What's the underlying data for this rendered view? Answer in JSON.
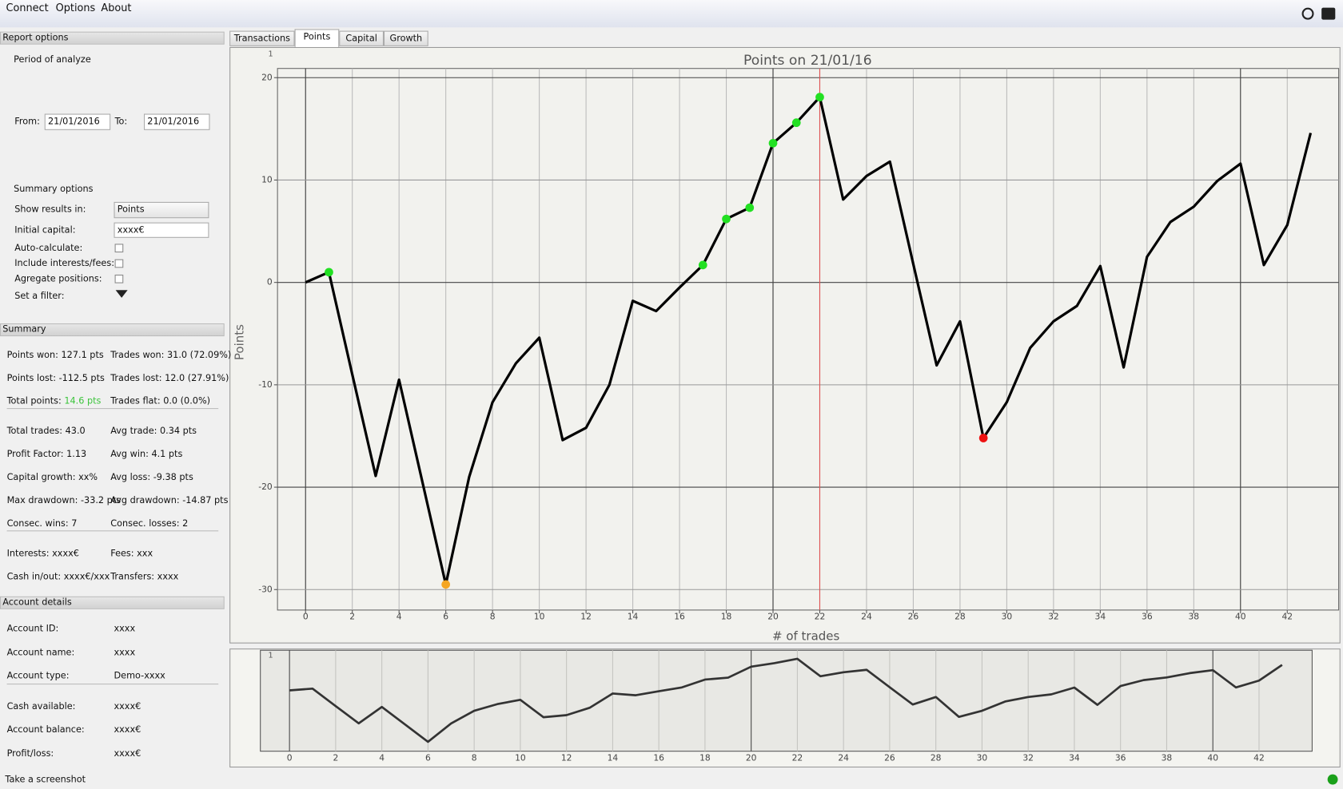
{
  "menu": [
    "Connect",
    "Options",
    "About"
  ],
  "report_options": {
    "title": "Report options",
    "period_label": "Period of analyze",
    "from_label": "From:",
    "from": "21/01/2016",
    "to_label": "To:",
    "to": "21/01/2016",
    "summary_options": "Summary options",
    "show_results_label": "Show results in:",
    "show_results": "Points",
    "initial_capital_label": "Initial capital:",
    "initial_capital": "xxxx€",
    "auto_calculate": "Auto-calculate:",
    "include_interests": "Include interests/fees:",
    "aggregate": "Agregate positions:",
    "filter": "Set a filter:"
  },
  "summary": {
    "title": "Summary",
    "groups": [
      [
        {
          "left": "Points won: 127.1 pts",
          "right": "Trades won: 31.0 (72.09%)"
        },
        {
          "left": "Points lost: -112.5 pts",
          "right": "Trades lost: 12.0 (27.91%)"
        },
        {
          "left": "Total points:",
          "left_value": "14.6 pts",
          "right": "Trades flat: 0.0 (0.0%)"
        }
      ],
      [
        {
          "left": "Total trades: 43.0",
          "right": "Avg trade: 0.34 pts"
        },
        {
          "left": "Profit Factor: 1.13",
          "right": "Avg win: 4.1 pts"
        },
        {
          "left": "Capital growth: xx%",
          "right": "Avg loss: -9.38 pts"
        },
        {
          "left": "Max drawdown: -33.2 pts",
          "right": "Avg drawdown: -14.87 pts"
        },
        {
          "left": "Consec. wins: 7",
          "right": "Consec. losses: 2"
        }
      ],
      [
        {
          "left": "Interests: xxxx€",
          "right": "Fees: xxx"
        },
        {
          "left": "Cash in/out: xxxx€/xxx",
          "right": "Transfers: xxxx"
        }
      ]
    ]
  },
  "account": {
    "title": "Account details",
    "groups": [
      [
        {
          "left": "Account ID:",
          "right": "xxxx"
        },
        {
          "left": "Account name:",
          "right": "xxxx"
        },
        {
          "left": "Account type:",
          "right": "Demo-xxxx"
        }
      ],
      [
        {
          "left": "Cash available:",
          "right": "xxxx€"
        },
        {
          "left": "Account balance:",
          "right": "xxxx€"
        },
        {
          "left": "Profit/loss:",
          "right": "xxxx€"
        }
      ]
    ]
  },
  "tabs": [
    "Transactions",
    "Points",
    "Capital",
    "Growth"
  ],
  "status": "Take a screenshot",
  "chart_data": {
    "type": "line",
    "title": "Points on 21/01/16",
    "x_label": "# of trades",
    "y_label": "Points",
    "corner_label": "1",
    "x": [
      0,
      1,
      2,
      3,
      4,
      5,
      6,
      7,
      8,
      9,
      10,
      11,
      12,
      13,
      14,
      15,
      16,
      17,
      18,
      19,
      20,
      21,
      22,
      23,
      24,
      25,
      26,
      27,
      28,
      29,
      30,
      31,
      32,
      33,
      34,
      35,
      36,
      37,
      38,
      39,
      40,
      41,
      42,
      43
    ],
    "series": [
      {
        "color": "#000000",
        "values": [
          0,
          1.0,
          -9.0,
          -18.9,
          -9.5,
          -19.5,
          -29.5,
          -19.0,
          -11.7,
          -7.9,
          -5.4,
          -15.4,
          -14.2,
          -10.0,
          -1.8,
          -2.8,
          -0.5,
          1.7,
          6.2,
          7.3,
          13.6,
          15.6,
          18.1,
          8.1,
          10.4,
          11.8,
          1.8,
          -8.1,
          -3.8,
          -15.2,
          -11.7,
          -6.4,
          -3.8,
          -2.3,
          1.6,
          -8.3,
          2.5,
          5.9,
          7.4,
          9.9,
          11.6,
          1.7,
          5.6,
          14.6
        ]
      }
    ],
    "highlights": [
      {
        "index": 1,
        "color": "#22e022"
      },
      {
        "index": 6,
        "color": "#f5a623"
      },
      {
        "index": 17,
        "color": "#22e022"
      },
      {
        "index": 18,
        "color": "#22e022"
      },
      {
        "index": 19,
        "color": "#22e022"
      },
      {
        "index": 20,
        "color": "#22e022"
      },
      {
        "index": 21,
        "color": "#22e022"
      },
      {
        "index": 22,
        "color": "#22e022"
      },
      {
        "index": 29,
        "color": "#ee1111"
      }
    ],
    "cursor_x": 22,
    "cursor_color": "#e05050",
    "xlim": [
      -1.2,
      44.2
    ],
    "ylim": [
      -32,
      20.9
    ],
    "xticks": [
      0,
      2,
      4,
      6,
      8,
      10,
      12,
      14,
      16,
      18,
      20,
      22,
      24,
      26,
      28,
      30,
      32,
      34,
      36,
      38,
      40,
      42
    ],
    "yticks": [
      -30,
      -20,
      -10,
      0,
      10,
      20
    ],
    "grid": true
  }
}
